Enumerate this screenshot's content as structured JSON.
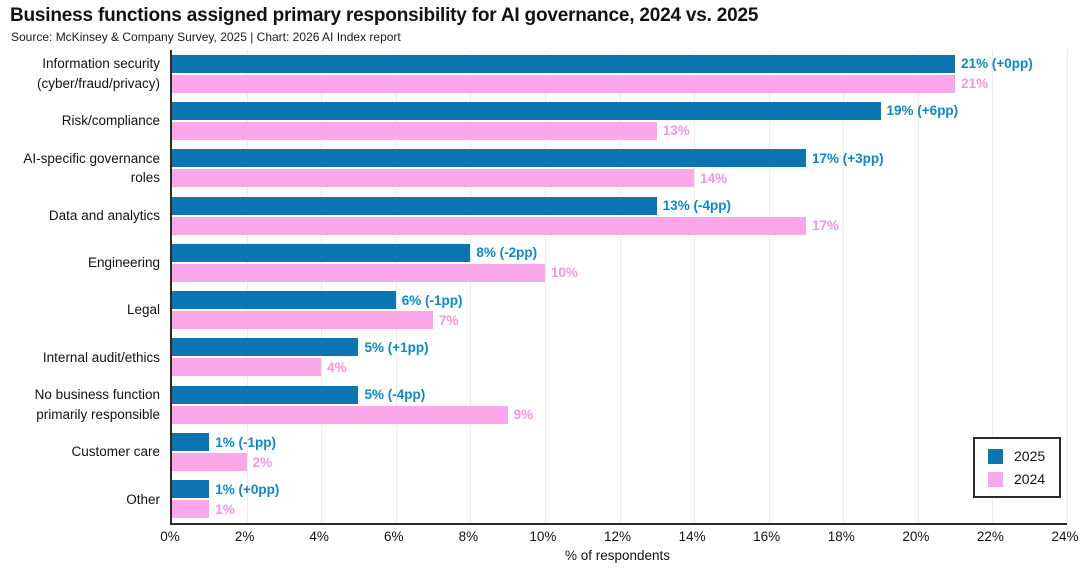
{
  "title": "Business functions assigned primary responsibility for AI governance, 2024 vs. 2025",
  "subtitle": "Source: McKinsey & Company Survey, 2025 | Chart: 2026 AI Index report",
  "colors": {
    "bar_2025": "#0b76b2",
    "bar_2024": "#fba7e9",
    "label_2025": "#0a8ac9",
    "label_2024": "#f795e2",
    "axis": "#2b2b2b",
    "grid": "#ededed",
    "text": "#121212"
  },
  "chart_data": {
    "type": "bar",
    "orientation": "horizontal",
    "title": "Business functions assigned primary responsibility for AI governance, 2024 vs. 2025",
    "xlabel": "% of respondents",
    "ylabel": "",
    "xlim": [
      0,
      24
    ],
    "grid": true,
    "legend_position": "bottom-right",
    "x_ticks": [
      "0%",
      "2%",
      "4%",
      "6%",
      "8%",
      "10%",
      "12%",
      "14%",
      "16%",
      "18%",
      "20%",
      "22%",
      "24%"
    ],
    "categories": [
      "Information security\n(cyber/fraud/privacy)",
      "Risk/compliance",
      "AI-specific governance\nroles",
      "Data and analytics",
      "Engineering",
      "Legal",
      "Internal audit/ethics",
      "No business function\nprimarily responsible",
      "Customer care",
      "Other"
    ],
    "series": [
      {
        "name": "2025",
        "color": "#0b76b2",
        "label_color": "#0a8ac9",
        "values": [
          21,
          19,
          17,
          13,
          8,
          6,
          5,
          5,
          1,
          1
        ],
        "labels": [
          "21% (+0pp)",
          "19% (+6pp)",
          "17% (+3pp)",
          "13% (-4pp)",
          "8% (-2pp)",
          "6% (-1pp)",
          "5% (+1pp)",
          "5% (-4pp)",
          "1% (-1pp)",
          "1% (+0pp)"
        ]
      },
      {
        "name": "2024",
        "color": "#fba7e9",
        "label_color": "#f795e2",
        "values": [
          21,
          13,
          14,
          17,
          10,
          7,
          4,
          9,
          2,
          1
        ],
        "labels": [
          "21%",
          "13%",
          "14%",
          "17%",
          "10%",
          "7%",
          "4%",
          "9%",
          "2%",
          "1%"
        ]
      }
    ],
    "legend": [
      {
        "name": "2025",
        "color": "#0b76b2"
      },
      {
        "name": "2024",
        "color": "#fba7e9"
      }
    ]
  }
}
